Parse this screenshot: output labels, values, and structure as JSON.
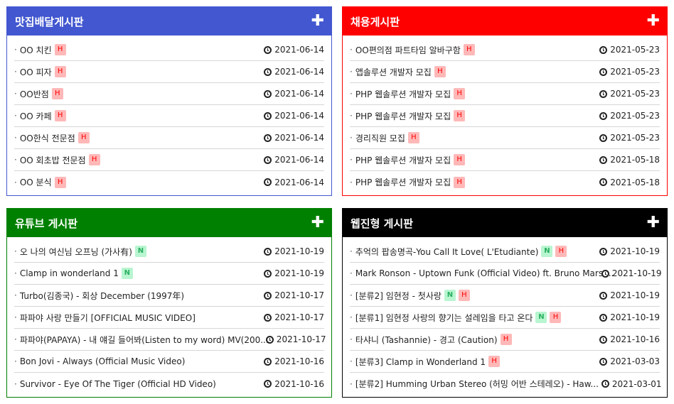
{
  "boards": [
    {
      "title": "맛집배달게시판",
      "color": "#4257d0",
      "items": [
        {
          "title": "OO 치킨",
          "badges": [
            "H"
          ],
          "date": "2021-06-14"
        },
        {
          "title": "OO 피자",
          "badges": [
            "H"
          ],
          "date": "2021-06-14"
        },
        {
          "title": "OO반점",
          "badges": [
            "H"
          ],
          "date": "2021-06-14"
        },
        {
          "title": "OO 카페",
          "badges": [
            "H"
          ],
          "date": "2021-06-14"
        },
        {
          "title": "OO한식 전문점",
          "badges": [
            "H"
          ],
          "date": "2021-06-14"
        },
        {
          "title": "OO 회초밥 전문점",
          "badges": [
            "H"
          ],
          "date": "2021-06-14"
        },
        {
          "title": "OO 분식",
          "badges": [
            "H"
          ],
          "date": "2021-06-14"
        }
      ]
    },
    {
      "title": "채용게시판",
      "color": "#ff0000",
      "items": [
        {
          "title": "OO편의점 파트타임 알바구함",
          "badges": [
            "H"
          ],
          "date": "2021-05-23"
        },
        {
          "title": "앱솔루션 개발자 모집",
          "badges": [
            "H"
          ],
          "date": "2021-05-23"
        },
        {
          "title": "PHP 웹솔루션 개발자 모집",
          "badges": [
            "H"
          ],
          "date": "2021-05-23"
        },
        {
          "title": "PHP 웹솔루션 개발자 모집",
          "badges": [
            "H"
          ],
          "date": "2021-05-23"
        },
        {
          "title": "경리직원 모집",
          "badges": [
            "H"
          ],
          "date": "2021-05-23"
        },
        {
          "title": "PHP 웹솔루션 개발자 모집",
          "badges": [
            "H"
          ],
          "date": "2021-05-18"
        },
        {
          "title": "PHP 웹솔루션 개발자 모집",
          "badges": [
            "H"
          ],
          "date": "2021-05-18"
        }
      ]
    },
    {
      "title": "유튜브 게시판",
      "color": "#008000",
      "items": [
        {
          "title": "오 나의 여신님 오프닝 (가사有)",
          "badges": [
            "N"
          ],
          "date": "2021-10-19"
        },
        {
          "title": "Clamp in wonderland 1",
          "badges": [
            "N"
          ],
          "date": "2021-10-19"
        },
        {
          "title": "Turbo(김종국) - 회상 December (1997年)",
          "badges": [],
          "date": "2021-10-17"
        },
        {
          "title": "파파야 사랑 만들기 [OFFICIAL MUSIC VIDEO]",
          "badges": [],
          "date": "2021-10-17"
        },
        {
          "title": "파파야(PAPAYA) - 내 얘길 들어봐(Listen to my word) MV(200...",
          "badges": [],
          "date": "2021-10-17"
        },
        {
          "title": "Bon Jovi - Always (Official Music Video)",
          "badges": [],
          "date": "2021-10-16"
        },
        {
          "title": "Survivor - Eye Of The Tiger (Official HD Video)",
          "badges": [],
          "date": "2021-10-16"
        }
      ]
    },
    {
      "title": "웹진형 게시판",
      "color": "#000000",
      "items": [
        {
          "title": "추억의 팝송명곡-You Call It Love( L'Etudiante)",
          "badges": [
            "N",
            "H"
          ],
          "date": "2021-10-19"
        },
        {
          "title": "Mark Ronson - Uptown Funk (Official Video) ft. Bruno Mars ...",
          "badges": [],
          "date": "2021-10-19"
        },
        {
          "title": "[분류2] 임현정 - 첫사랑",
          "badges": [
            "N",
            "H"
          ],
          "date": "2021-10-19"
        },
        {
          "title": "[분류1] 임현정 사랑의 향기는 설레임을 타고 온다",
          "badges": [
            "N",
            "H"
          ],
          "date": "2021-10-19"
        },
        {
          "title": "타샤니 (Tashannie) - 경고 (Caution)",
          "badges": [
            "H"
          ],
          "date": "2021-10-16"
        },
        {
          "title": "[분류3] Clamp in Wonderland 1",
          "badges": [
            "H"
          ],
          "date": "2021-03-03"
        },
        {
          "title": "[분류2] Humming Urban Stereo (허밍 어반 스테레오) - Haw...",
          "badges": [],
          "date": "2021-03-01"
        }
      ]
    }
  ],
  "icons": {
    "more": "plus-icon",
    "date": "clock-icon"
  }
}
